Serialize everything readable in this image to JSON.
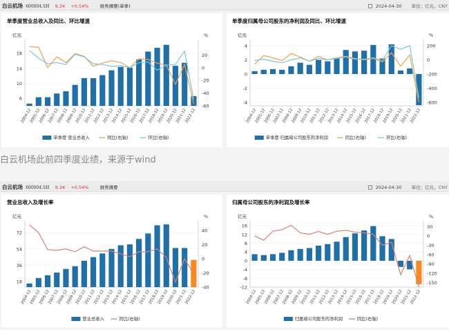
{
  "header_top": {
    "stock_name": "白云机场",
    "stock_code": "600004.SH",
    "price": "9.34",
    "change": "+0.54%",
    "tab": "财务摘要(单季)",
    "date": "2024-04-30",
    "unit": "单位：亿元，CNY"
  },
  "header_bottom": {
    "stock_name": "白云机场",
    "stock_code": "600004.SH",
    "price": "9.34",
    "change": "+0.54%",
    "tab": "财务摘要",
    "date": "2024-04-30",
    "unit": "单位：亿元，CNY"
  },
  "caption": "白云机场此前四季度业绩，来源于wind",
  "colors": {
    "bar": "#1f6fa8",
    "bar_highlight": "#f7891f",
    "yoy": "#f0a24a",
    "qoq": "#7cc7d8",
    "yoy_single": "#d98080",
    "caption_text": "#888888",
    "price_up": "#e0302f"
  },
  "panels": [
    {
      "title": "单季度营业总收入及同比、环比增速"
    },
    {
      "title": "单季度归属母公司股东的净利润及同比、环比增速"
    },
    {
      "title": "营业总收入及增长率"
    },
    {
      "title": "归属母公司股东的净利润及增长率"
    }
  ],
  "chart_data": [
    {
      "type": "bar",
      "title": "单季度营业总收入及同比、环比增速",
      "categories": [
        "2004-12",
        "2005-12",
        "2006-12",
        "2007-12",
        "2008-12",
        "2009-12",
        "2010-12",
        "2011-12",
        "2012-12",
        "2013-12",
        "2014-12",
        "2015-12",
        "2016-12",
        "2017-12",
        "2018-12",
        "2019-12",
        "2020-12",
        "2021-12",
        "2022-12"
      ],
      "ylabel": "亿元",
      "y2label": "%",
      "ylim": [
        4,
        21
      ],
      "y_ticks": [
        6,
        10,
        14,
        18
      ],
      "y2lim": [
        -60,
        40
      ],
      "y2_ticks": [
        -60,
        -40,
        -20,
        0,
        20
      ],
      "series": [
        {
          "name": "单季度·营业总收入",
          "type": "bar",
          "axis": "left",
          "values": [
            4.6,
            6.3,
            6.3,
            7.3,
            7.9,
            9.6,
            11.4,
            11.4,
            12.2,
            13.5,
            14.4,
            14.2,
            16.4,
            18.5,
            19.5,
            20.3,
            14.7,
            15.5,
            6.6
          ]
        },
        {
          "name": "同比(右轴)",
          "type": "line",
          "axis": "right",
          "values": [
            33,
            32,
            0,
            17,
            8,
            22,
            18,
            2,
            7,
            11,
            8,
            0,
            14,
            13,
            7,
            4,
            -26,
            5,
            -57
          ]
        },
        {
          "name": "环比(右轴)",
          "type": "line",
          "axis": "right",
          "values": [
            27,
            15,
            6,
            8,
            5,
            21,
            17,
            6,
            5,
            2,
            3,
            0,
            8,
            9,
            -4,
            4,
            5,
            26,
            -50
          ]
        }
      ],
      "legend": [
        "单季度·营业总收入",
        "同比(右轴)",
        "环比(右轴)"
      ],
      "legend_position": "bottom",
      "grid": true
    },
    {
      "type": "bar",
      "title": "单季度归属母公司股东的净利润及同比、环比增速",
      "categories": [
        "2004-12",
        "2005-12",
        "2006-12",
        "2007-12",
        "2008-12",
        "2009-12",
        "2010-12",
        "2011-12",
        "2012-12",
        "2013-12",
        "2014-12",
        "2015-12",
        "2016-12",
        "2017-12",
        "2018-12",
        "2019-12",
        "2020-12",
        "2021-12",
        "2022-12"
      ],
      "ylabel": "亿元",
      "y2label": "%",
      "ylim": [
        -4.5,
        4.5
      ],
      "y_ticks": [
        -4,
        -2,
        0,
        2,
        4
      ],
      "y2lim": [
        -650,
        250
      ],
      "y2_ticks": [
        -600,
        -400,
        -200,
        0,
        200
      ],
      "series": [
        {
          "name": "单季度·归属母公司股东的净利润",
          "type": "bar",
          "axis": "left",
          "values": [
            0.4,
            0.6,
            0.7,
            0.6,
            1.1,
            1.6,
            1.3,
            2.0,
            1.8,
            2.3,
            3.4,
            3.2,
            3.3,
            4.1,
            2.2,
            4.2,
            0.5,
            0.8,
            -4.4
          ]
        },
        {
          "name": "同比(右轴)",
          "type": "line",
          "axis": "right",
          "values": [
            -60,
            60,
            30,
            -10,
            90,
            40,
            -20,
            50,
            0,
            30,
            50,
            20,
            0,
            20,
            -30,
            100,
            -90,
            70,
            -600
          ]
        },
        {
          "name": "环比(右轴)",
          "type": "line",
          "axis": "right",
          "values": [
            -10,
            10,
            -20,
            -40,
            0,
            30,
            -20,
            20,
            0,
            20,
            40,
            10,
            10,
            30,
            -10,
            200,
            150,
            200,
            -540
          ]
        }
      ],
      "legend": [
        "单季度·归属母公司股东的净利润",
        "同比(右轴)",
        "环比(右轴)"
      ],
      "legend_position": "bottom",
      "grid": true
    },
    {
      "type": "bar",
      "title": "营业总收入及增长率",
      "categories": [
        "2004-12",
        "2005-12",
        "2006-12",
        "2007-12",
        "2008-12",
        "2009-12",
        "2010-12",
        "2011-12",
        "2012-12",
        "2013-12",
        "2014-12",
        "2015-12",
        "2016-12",
        "2017-12",
        "2018-12",
        "2019-12",
        "2020-12",
        "2021-12",
        "2022-12"
      ],
      "ylabel": "亿元",
      "y2label": "%",
      "ylim": [
        12,
        82
      ],
      "y_ticks": [
        18,
        36,
        54,
        72
      ],
      "y2lim": [
        -40,
        50
      ],
      "y2_ticks": [
        -40,
        -20,
        0,
        20,
        40
      ],
      "series": [
        {
          "name": "营业总收入",
          "type": "bar",
          "axis": "left",
          "values": [
            16,
            22,
            25,
            28,
            32,
            35,
            41,
            45,
            49,
            54,
            58,
            59,
            65,
            71,
            80,
            81,
            55,
            55,
            42
          ],
          "highlight_last": true
        },
        {
          "name": "同比(右轴)",
          "type": "line",
          "axis": "right",
          "values": [
            48,
            37,
            13,
            12,
            14,
            10,
            17,
            11,
            11,
            11,
            7,
            3,
            10,
            10,
            14,
            2,
            -33,
            0,
            -21
          ]
        }
      ],
      "legend": [
        "营业总收入",
        "同比(右轴)"
      ],
      "legend_position": "bottom",
      "grid": true
    },
    {
      "type": "bar",
      "title": "归属母公司股东的净利润及增长率",
      "categories": [
        "2004-12",
        "2005-12",
        "2006-12",
        "2007-12",
        "2008-12",
        "2009-12",
        "2010-12",
        "2011-12",
        "2012-12",
        "2013-12",
        "2014-12",
        "2015-12",
        "2016-12",
        "2017-12",
        "2018-12",
        "2019-12",
        "2020-12",
        "2021-12",
        "2022-12"
      ],
      "ylabel": "亿元",
      "y2label": "%",
      "ylim": [
        -12,
        17
      ],
      "y_ticks": [
        -12,
        -8,
        -4,
        0,
        4,
        8,
        12,
        16
      ],
      "y2lim": [
        -165,
        40
      ],
      "y2_ticks": [
        -150,
        -120,
        -90,
        -60,
        -30,
        0,
        30
      ],
      "series": [
        {
          "name": "归属母公司股东的净利润",
          "type": "bar",
          "axis": "left",
          "values": [
            3.0,
            2.6,
            3.0,
            3.6,
            4.8,
            5.4,
            5.8,
            6.9,
            7.6,
            8.7,
            10.8,
            12.5,
            13.8,
            15.8,
            11.2,
            9.9,
            -2.8,
            -3.9,
            -10.7
          ],
          "highlight_last": true
        },
        {
          "name": "同比(右轴)",
          "type": "line",
          "axis": "right",
          "values": [
            0,
            -14,
            15,
            20,
            34,
            10,
            5,
            14,
            5,
            15,
            18,
            12,
            10,
            5,
            -30,
            -20,
            -125,
            -63,
            -165
          ]
        }
      ],
      "legend": [
        "归属母公司股东的净利润",
        "同比(右轴)"
      ],
      "legend_position": "bottom",
      "grid": true
    }
  ]
}
